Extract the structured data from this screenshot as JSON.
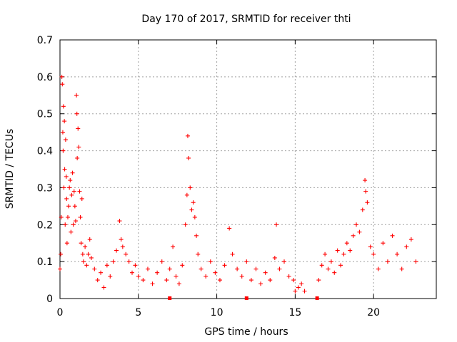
{
  "chart_data": {
    "type": "scatter",
    "title": "Day 170 of 2017, SRMTID for receiver thti",
    "xlabel": "GPS time / hours",
    "ylabel": "SRMTID / TECUs",
    "xlim": [
      0,
      24
    ],
    "ylim": [
      0,
      0.7
    ],
    "grid": true,
    "marker": "+",
    "color": "#ff0000",
    "xticks": [
      0,
      5,
      10,
      15,
      20
    ],
    "yticks": [
      0,
      0.1,
      0.2,
      0.3,
      0.4,
      0.5,
      0.6,
      0.7
    ],
    "xtick_labels": [
      "0",
      "5",
      "10",
      "15",
      "20"
    ],
    "ytick_labels": [
      "0",
      "0.1",
      "0.2",
      "0.3",
      "0.4",
      "0.5",
      "0.6",
      "0.7"
    ],
    "series": [
      {
        "name": "SRMTID",
        "points": [
          [
            0.0,
            0.08
          ],
          [
            0.05,
            0.12
          ],
          [
            0.08,
            0.22
          ],
          [
            0.12,
            0.6
          ],
          [
            0.15,
            0.58
          ],
          [
            0.18,
            0.45
          ],
          [
            0.2,
            0.4
          ],
          [
            0.22,
            0.52
          ],
          [
            0.25,
            0.3
          ],
          [
            0.28,
            0.48
          ],
          [
            0.3,
            0.35
          ],
          [
            0.33,
            0.2
          ],
          [
            0.36,
            0.43
          ],
          [
            0.4,
            0.33
          ],
          [
            0.42,
            0.27
          ],
          [
            0.45,
            0.15
          ],
          [
            0.5,
            0.22
          ],
          [
            0.55,
            0.25
          ],
          [
            0.6,
            0.3
          ],
          [
            0.65,
            0.32
          ],
          [
            0.7,
            0.18
          ],
          [
            0.75,
            0.28
          ],
          [
            0.8,
            0.34
          ],
          [
            0.85,
            0.2
          ],
          [
            0.9,
            0.29
          ],
          [
            0.95,
            0.25
          ],
          [
            1.0,
            0.21
          ],
          [
            1.05,
            0.55
          ],
          [
            1.08,
            0.5
          ],
          [
            1.1,
            0.38
          ],
          [
            1.15,
            0.46
          ],
          [
            1.2,
            0.41
          ],
          [
            1.25,
            0.29
          ],
          [
            1.3,
            0.22
          ],
          [
            1.35,
            0.15
          ],
          [
            1.4,
            0.27
          ],
          [
            1.45,
            0.12
          ],
          [
            1.5,
            0.1
          ],
          [
            1.6,
            0.14
          ],
          [
            1.7,
            0.09
          ],
          [
            1.8,
            0.12
          ],
          [
            1.9,
            0.16
          ],
          [
            2.0,
            0.11
          ],
          [
            2.2,
            0.08
          ],
          [
            2.4,
            0.05
          ],
          [
            2.6,
            0.07
          ],
          [
            2.8,
            0.03
          ],
          [
            3.0,
            0.09
          ],
          [
            3.2,
            0.06
          ],
          [
            3.4,
            0.1
          ],
          [
            3.6,
            0.13
          ],
          [
            3.8,
            0.21
          ],
          [
            3.9,
            0.16
          ],
          [
            4.0,
            0.14
          ],
          [
            4.2,
            0.12
          ],
          [
            4.4,
            0.1
          ],
          [
            4.6,
            0.07
          ],
          [
            4.8,
            0.09
          ],
          [
            5.0,
            0.06
          ],
          [
            5.3,
            0.05
          ],
          [
            5.6,
            0.08
          ],
          [
            5.9,
            0.04
          ],
          [
            6.2,
            0.07
          ],
          [
            6.5,
            0.1
          ],
          [
            6.8,
            0.05
          ],
          [
            7.0,
            0.08
          ],
          [
            7.2,
            0.14
          ],
          [
            7.4,
            0.06
          ],
          [
            7.6,
            0.04
          ],
          [
            7.8,
            0.09
          ],
          [
            8.0,
            0.2
          ],
          [
            8.1,
            0.28
          ],
          [
            8.15,
            0.44
          ],
          [
            8.2,
            0.38
          ],
          [
            8.3,
            0.3
          ],
          [
            8.4,
            0.24
          ],
          [
            8.5,
            0.26
          ],
          [
            8.6,
            0.22
          ],
          [
            8.7,
            0.17
          ],
          [
            8.8,
            0.12
          ],
          [
            9.0,
            0.08
          ],
          [
            9.3,
            0.06
          ],
          [
            9.6,
            0.1
          ],
          [
            9.9,
            0.07
          ],
          [
            10.2,
            0.05
          ],
          [
            10.5,
            0.09
          ],
          [
            10.8,
            0.19
          ],
          [
            11.0,
            0.12
          ],
          [
            11.3,
            0.08
          ],
          [
            11.6,
            0.06
          ],
          [
            11.9,
            0.1
          ],
          [
            12.2,
            0.05
          ],
          [
            12.5,
            0.08
          ],
          [
            12.8,
            0.04
          ],
          [
            13.1,
            0.07
          ],
          [
            13.4,
            0.05
          ],
          [
            13.7,
            0.11
          ],
          [
            13.8,
            0.2
          ],
          [
            14.0,
            0.08
          ],
          [
            14.3,
            0.1
          ],
          [
            14.6,
            0.06
          ],
          [
            14.9,
            0.05
          ],
          [
            15.0,
            0.02
          ],
          [
            15.2,
            0.03
          ],
          [
            15.4,
            0.04
          ],
          [
            15.6,
            0.02
          ],
          [
            16.5,
            0.05
          ],
          [
            16.7,
            0.09
          ],
          [
            16.9,
            0.12
          ],
          [
            17.1,
            0.08
          ],
          [
            17.3,
            0.1
          ],
          [
            17.5,
            0.07
          ],
          [
            17.7,
            0.13
          ],
          [
            17.9,
            0.09
          ],
          [
            18.1,
            0.12
          ],
          [
            18.3,
            0.15
          ],
          [
            18.5,
            0.13
          ],
          [
            18.7,
            0.17
          ],
          [
            18.9,
            0.2
          ],
          [
            19.1,
            0.18
          ],
          [
            19.3,
            0.24
          ],
          [
            19.45,
            0.32
          ],
          [
            19.5,
            0.29
          ],
          [
            19.6,
            0.26
          ],
          [
            19.8,
            0.14
          ],
          [
            20.0,
            0.12
          ],
          [
            20.3,
            0.08
          ],
          [
            20.6,
            0.15
          ],
          [
            20.9,
            0.1
          ],
          [
            21.2,
            0.17
          ],
          [
            21.5,
            0.12
          ],
          [
            21.8,
            0.08
          ],
          [
            22.1,
            0.14
          ],
          [
            22.4,
            0.16
          ],
          [
            22.7,
            0.1
          ]
        ]
      }
    ]
  }
}
